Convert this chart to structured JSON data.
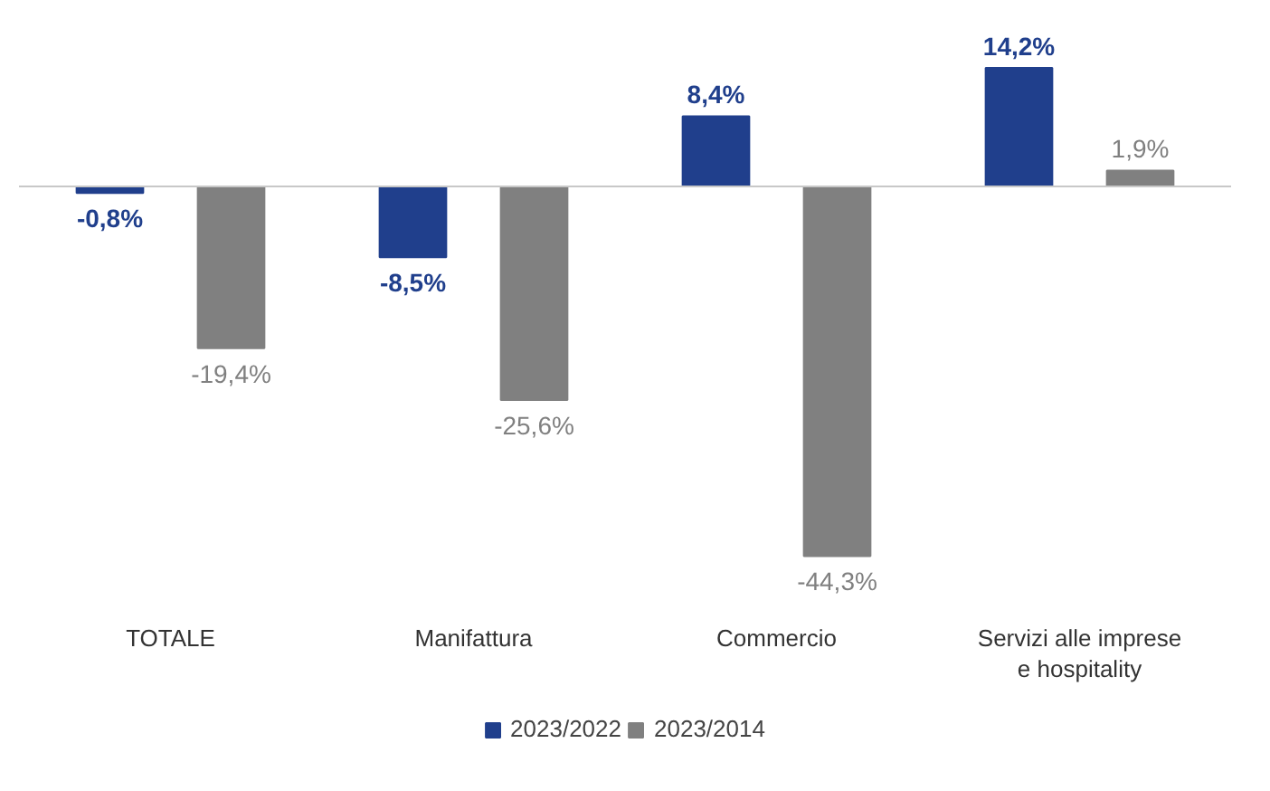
{
  "chart_data": {
    "type": "bar",
    "categories": [
      "TOTALE",
      "Manifattura",
      "Commercio",
      "Servizi alle imprese e hospitality"
    ],
    "series": [
      {
        "name": "2023/2022",
        "color": "#203f8c",
        "values": [
          -0.8,
          -8.5,
          8.4,
          14.2
        ],
        "value_labels": [
          "-0,8%",
          "-8,5%",
          "8,4%",
          "14,2%"
        ]
      },
      {
        "name": "2023/2014",
        "color": "#808080",
        "values": [
          -19.4,
          -25.6,
          -44.3,
          1.9
        ],
        "value_labels": [
          "-19,4%",
          "-25,6%",
          "-44,3%",
          "1,9%"
        ]
      }
    ],
    "legend": "bottom"
  }
}
